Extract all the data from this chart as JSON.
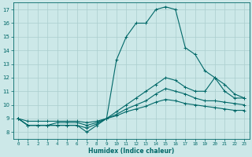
{
  "xlabel": "Humidex (Indice chaleur)",
  "ylabel": "",
  "xlim": [
    -0.5,
    23.5
  ],
  "ylim": [
    7.5,
    17.5
  ],
  "xticks": [
    0,
    1,
    2,
    3,
    4,
    5,
    6,
    7,
    8,
    9,
    10,
    11,
    12,
    13,
    14,
    15,
    16,
    17,
    18,
    19,
    20,
    21,
    22,
    23
  ],
  "yticks": [
    8,
    9,
    10,
    11,
    12,
    13,
    14,
    15,
    16,
    17
  ],
  "bg_color": "#cce8e8",
  "line_color": "#006868",
  "grid_color": "#aacece",
  "lines": [
    {
      "x": [
        0,
        1,
        2,
        3,
        4,
        5,
        6,
        7,
        8,
        9,
        10,
        11,
        12,
        13,
        14,
        15,
        16,
        17,
        18,
        19,
        20,
        21,
        22,
        23
      ],
      "y": [
        9.0,
        8.5,
        8.5,
        8.5,
        8.5,
        8.5,
        8.5,
        8.0,
        8.5,
        9.0,
        13.3,
        15.0,
        16.0,
        16.0,
        17.0,
        17.2,
        17.0,
        14.2,
        13.7,
        12.5,
        12.0,
        11.5,
        10.8,
        10.5
      ]
    },
    {
      "x": [
        0,
        1,
        2,
        3,
        4,
        5,
        6,
        7,
        8,
        9,
        10,
        11,
        12,
        13,
        14,
        15,
        16,
        17,
        18,
        19,
        20,
        21,
        22,
        23
      ],
      "y": [
        9.0,
        8.5,
        8.5,
        8.5,
        8.5,
        8.5,
        8.5,
        8.3,
        8.6,
        9.0,
        9.5,
        10.0,
        10.5,
        11.0,
        11.5,
        12.0,
        11.8,
        11.3,
        11.0,
        11.0,
        12.0,
        11.0,
        10.5,
        10.5
      ]
    },
    {
      "x": [
        0,
        1,
        2,
        3,
        4,
        5,
        6,
        7,
        8,
        9,
        10,
        11,
        12,
        13,
        14,
        15,
        16,
        17,
        18,
        19,
        20,
        21,
        22,
        23
      ],
      "y": [
        9.0,
        8.5,
        8.5,
        8.5,
        8.7,
        8.7,
        8.7,
        8.5,
        8.7,
        9.0,
        9.3,
        9.7,
        10.0,
        10.3,
        10.8,
        11.2,
        11.0,
        10.8,
        10.5,
        10.3,
        10.3,
        10.2,
        10.1,
        10.0
      ]
    },
    {
      "x": [
        0,
        1,
        2,
        3,
        4,
        5,
        6,
        7,
        8,
        9,
        10,
        11,
        12,
        13,
        14,
        15,
        16,
        17,
        18,
        19,
        20,
        21,
        22,
        23
      ],
      "y": [
        9.0,
        8.8,
        8.8,
        8.8,
        8.8,
        8.8,
        8.8,
        8.7,
        8.8,
        9.0,
        9.2,
        9.5,
        9.7,
        9.9,
        10.2,
        10.4,
        10.3,
        10.1,
        10.0,
        9.9,
        9.8,
        9.7,
        9.6,
        9.6
      ]
    }
  ]
}
